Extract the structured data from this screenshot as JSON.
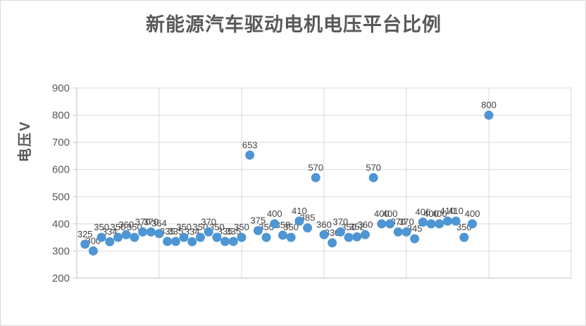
{
  "chart": {
    "title": "新能源汽车驱动电机电压平台比例",
    "y_axis_title": "电压V"
  },
  "chart_data": {
    "type": "scatter",
    "title": "新能源汽车驱动电机电压平台比例",
    "xlabel": "",
    "ylabel": "电压V",
    "ylim": [
      200,
      900
    ],
    "xlim": [
      0,
      60
    ],
    "y_ticks": [
      900,
      800,
      700,
      600,
      500,
      400,
      300,
      200
    ],
    "x_gridline_positions": [
      0,
      10,
      20,
      30,
      40,
      50,
      60
    ],
    "grid": true,
    "legend_position": "none",
    "point_color": "#4E95D4",
    "gridline_color": "#d9d9d9",
    "axis_line_color": "#bfbfbf",
    "tick_label_color": "#595959",
    "data_label_color": "#404040",
    "x": [
      1,
      2,
      3,
      4,
      5,
      6,
      7,
      8,
      9,
      10,
      11,
      12,
      13,
      14,
      15,
      16,
      17,
      18,
      19,
      20,
      21,
      22,
      23,
      24,
      25,
      26,
      27,
      28,
      29,
      30,
      31,
      32,
      33,
      34,
      35,
      36,
      37,
      38,
      39,
      40,
      41,
      42,
      43,
      44,
      45,
      46,
      47,
      48,
      50
    ],
    "values": [
      325,
      300,
      350,
      334,
      350,
      360,
      350,
      370,
      370,
      364,
      335,
      335,
      350,
      334,
      350,
      370,
      350,
      335,
      335,
      350,
      653,
      375,
      350,
      400,
      358,
      350,
      410,
      385,
      570,
      360,
      330,
      370,
      350,
      352,
      360,
      570,
      400,
      400,
      370,
      370,
      345,
      406,
      400,
      400,
      410,
      410,
      350,
      400,
      800
    ],
    "data_labels_shown": true
  }
}
